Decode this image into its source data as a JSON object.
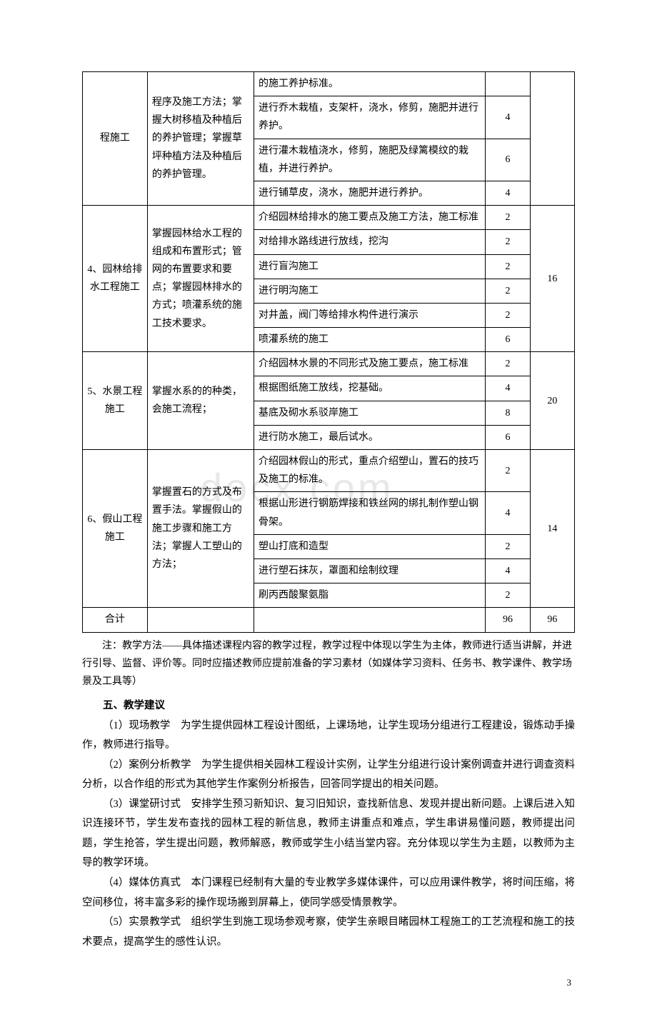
{
  "watermark": "docx.com",
  "table": {
    "columns_width": [
      "70px",
      "115px",
      "250px",
      "48px",
      "48px"
    ],
    "border_color": "#000000",
    "bg_color": "#ffffff",
    "font_size": 14,
    "groups": [
      {
        "col1": "程施工",
        "col2": "程序及施工方法；掌握大树移植及种植后的养护管理；掌握草坪种植方法及种植后的养护管理。",
        "col5": "",
        "rows": [
          {
            "col3": "的施工养护标准。",
            "col4": ""
          },
          {
            "col3": "进行乔木栽植，支架杆，浇水，修剪，施肥并进行养护。",
            "col4": "4"
          },
          {
            "col3": "进行灌木栽植浇水，修剪，施肥及绿篱模纹的栽植，并进行养护。",
            "col4": "6"
          },
          {
            "col3": "进行铺草皮，浇水，施肥并进行养护。",
            "col4": "4"
          }
        ]
      },
      {
        "col1": "4、园林给排水工程施工",
        "col2": "掌握园林给水工程的组成和布置形式；管网的布置要求和要点；掌握园林排水的方式；喷灌系统的施工技术要求。",
        "col5": "16",
        "rows": [
          {
            "col3": "介绍园林给排水的施工要点及施工方法，施工标准",
            "col4": "2"
          },
          {
            "col3": "对给排水路线进行放线，挖沟",
            "col4": "2"
          },
          {
            "col3": "进行盲沟施工",
            "col4": "2"
          },
          {
            "col3": "进行明沟施工",
            "col4": "2"
          },
          {
            "col3": "对井盖，阀门等给排水构件进行演示",
            "col4": "2"
          },
          {
            "col3": "喷灌系统的施工",
            "col4": "6"
          }
        ]
      },
      {
        "col1": "5、水景工程施工",
        "col2": "掌握水系的的种类，会施工流程；",
        "col5": "20",
        "rows": [
          {
            "col3": "介绍园林水景的不同形式及施工要点，施工标准",
            "col4": "2"
          },
          {
            "col3": "根据图纸施工放线，挖基础。",
            "col4": "4"
          },
          {
            "col3": "基底及砌水系驳岸施工",
            "col4": "8"
          },
          {
            "col3": "进行防水施工，最后试水。",
            "col4": "6"
          }
        ]
      },
      {
        "col1": "6、假山工程施工",
        "col2": "掌握置石的方式及布置手法。掌握假山的施工步骤和施工方法；掌握人工塑山的方法；",
        "col5": "14",
        "rows": [
          {
            "col3": "介绍园林假山的形式，重点介绍塑山，置石的技巧及施工的标准。",
            "col4": "2"
          },
          {
            "col3": "根据山形进行钢筋焊接和铁丝网的绑扎制作塑山钢骨架。",
            "col4": "4"
          },
          {
            "col3": "塑山打底和造型",
            "col4": "2"
          },
          {
            "col3": "进行塑石抹灰，罩面和绘制纹理",
            "col4": "4"
          },
          {
            "col3": "刷丙西酸聚氨脂",
            "col4": "2"
          }
        ]
      }
    ],
    "total_row": {
      "col1": "合计",
      "col2": "",
      "col3": "",
      "col4": "96",
      "col5": "96"
    }
  },
  "note_text": "注：教学方法——具体描述课程内容的教学过程，教学过程中体现以学生为主体，教师进行适当讲解，并进行引导、监督、评价等。同时应描述教师应提前准备的学习素材（如媒体学习资料、任务书、教学课件、教学场景及工具等）",
  "section_title": "五、教学建议",
  "paragraphs": [
    "（1）现场教学　为学生提供园林工程设计图纸，上课场地，让学生现场分组进行工程建设，锻炼动手操作，教师进行指导。",
    "（2）案例分析教学　为学生提供相关园林工程设计实例，让学生分组进行设计案例调查并进行调查资料分析，以合作组的形式为其他学生作案例分析报告，回答同学提出的相关问题。",
    "（3）课堂研讨式　安排学生预习新知识、复习旧知识，查找新信息、发现并提出新问题。上课后进入知识连接环节，学生发布查找的园林工程的新信息，教师主讲重点和难点，学生串讲易懂问题，教师提出问题，学生抢答，学生提出问题，教师解惑，教师或学生小结当堂内容。充分体现以学生为主题，以教师为主导的教学环境。",
    "（4）媒体仿真式　本门课程已经制有大量的专业教学多媒体课件，可以应用课件教学，将时间压缩，将空间移位，将丰富多彩的操作现场搬到屏幕上，使同学感受情景教学。",
    "（5）实景教学式　组织学生到施工现场参观考察，使学生亲眼目睹园林工程施工的工艺流程和施工的技术要点，提高学生的感性认识。"
  ],
  "page_number": "3"
}
